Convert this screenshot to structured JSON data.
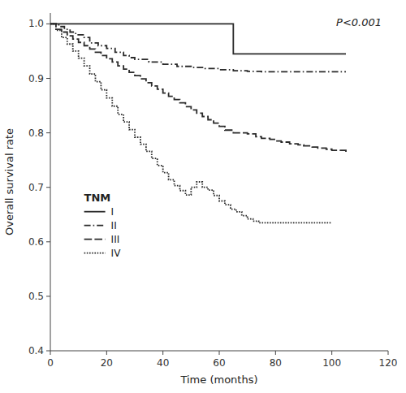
{
  "chart_data": {
    "type": "step",
    "xlabel": "Time (months)",
    "ylabel": "Overall survival rate",
    "annotations": [
      "P<0.001"
    ],
    "legend_title": "TNM",
    "legend": "lower left",
    "grid": false,
    "xlim": [
      0,
      120
    ],
    "ylim": [
      0.4,
      1.02
    ],
    "xticks": [
      0,
      20,
      40,
      60,
      80,
      100,
      120
    ],
    "yticks": [
      0.4,
      0.5,
      0.6,
      0.7,
      0.8,
      0.9,
      {
        "value": 1.0,
        "label": "1.0"
      }
    ],
    "series": [
      {
        "name": "I",
        "color": "#2a2a2a",
        "line_style": "solid",
        "x": [
          0,
          3,
          6,
          10,
          63,
          65,
          105
        ],
        "values": [
          1.0,
          1.0,
          1.0,
          1.0,
          1.0,
          0.945,
          0.945
        ]
      },
      {
        "name": "II",
        "color": "#2a2a2a",
        "line_style": "dashdot",
        "x": [
          0,
          3,
          5,
          7,
          9,
          12,
          14,
          17,
          20,
          23,
          26,
          28,
          30,
          35,
          40,
          45,
          50,
          55,
          60,
          65,
          70,
          75,
          80,
          85,
          90,
          95,
          100,
          105
        ],
        "values": [
          1.0,
          0.995,
          0.99,
          0.985,
          0.98,
          0.975,
          0.965,
          0.96,
          0.955,
          0.948,
          0.942,
          0.938,
          0.935,
          0.93,
          0.926,
          0.922,
          0.92,
          0.918,
          0.916,
          0.914,
          0.913,
          0.912,
          0.912,
          0.912,
          0.912,
          0.912,
          0.912,
          0.912
        ]
      },
      {
        "name": "III",
        "color": "#2a2a2a",
        "line_style": "dashed",
        "x": [
          0,
          2,
          4,
          6,
          8,
          10,
          12,
          14,
          16,
          18,
          20,
          22,
          24,
          26,
          28,
          30,
          32,
          34,
          36,
          38,
          40,
          42,
          44,
          46,
          48,
          50,
          52,
          54,
          56,
          58,
          60,
          62,
          65,
          68,
          70,
          73,
          75,
          78,
          80,
          82,
          85,
          88,
          90,
          93,
          95,
          98,
          100,
          105
        ],
        "values": [
          1.0,
          0.99,
          0.985,
          0.978,
          0.972,
          0.966,
          0.96,
          0.954,
          0.948,
          0.942,
          0.936,
          0.93,
          0.923,
          0.917,
          0.911,
          0.905,
          0.899,
          0.892,
          0.886,
          0.88,
          0.873,
          0.867,
          0.861,
          0.855,
          0.848,
          0.842,
          0.836,
          0.83,
          0.824,
          0.818,
          0.812,
          0.805,
          0.8,
          0.8,
          0.798,
          0.793,
          0.79,
          0.788,
          0.785,
          0.783,
          0.78,
          0.778,
          0.776,
          0.774,
          0.772,
          0.77,
          0.768,
          0.765
        ]
      },
      {
        "name": "IV",
        "color": "#2a2a2a",
        "line_style": "dotted",
        "x": [
          0,
          2,
          4,
          6,
          8,
          10,
          12,
          14,
          16,
          18,
          20,
          22,
          24,
          26,
          28,
          30,
          32,
          34,
          36,
          38,
          40,
          42,
          44,
          46,
          48,
          50,
          52,
          54,
          56,
          58,
          60,
          62,
          64,
          66,
          68,
          70,
          72,
          74,
          76,
          78,
          80,
          82,
          85,
          88,
          90,
          95,
          100
        ],
        "values": [
          1.0,
          0.988,
          0.975,
          0.963,
          0.95,
          0.937,
          0.923,
          0.908,
          0.894,
          0.879,
          0.864,
          0.849,
          0.834,
          0.82,
          0.806,
          0.792,
          0.779,
          0.766,
          0.753,
          0.74,
          0.727,
          0.714,
          0.703,
          0.694,
          0.686,
          0.7,
          0.71,
          0.7,
          0.695,
          0.685,
          0.675,
          0.668,
          0.66,
          0.655,
          0.648,
          0.642,
          0.638,
          0.635,
          0.635,
          0.635,
          0.635,
          0.635,
          0.635,
          0.635,
          0.635,
          0.635,
          0.635
        ]
      }
    ]
  }
}
